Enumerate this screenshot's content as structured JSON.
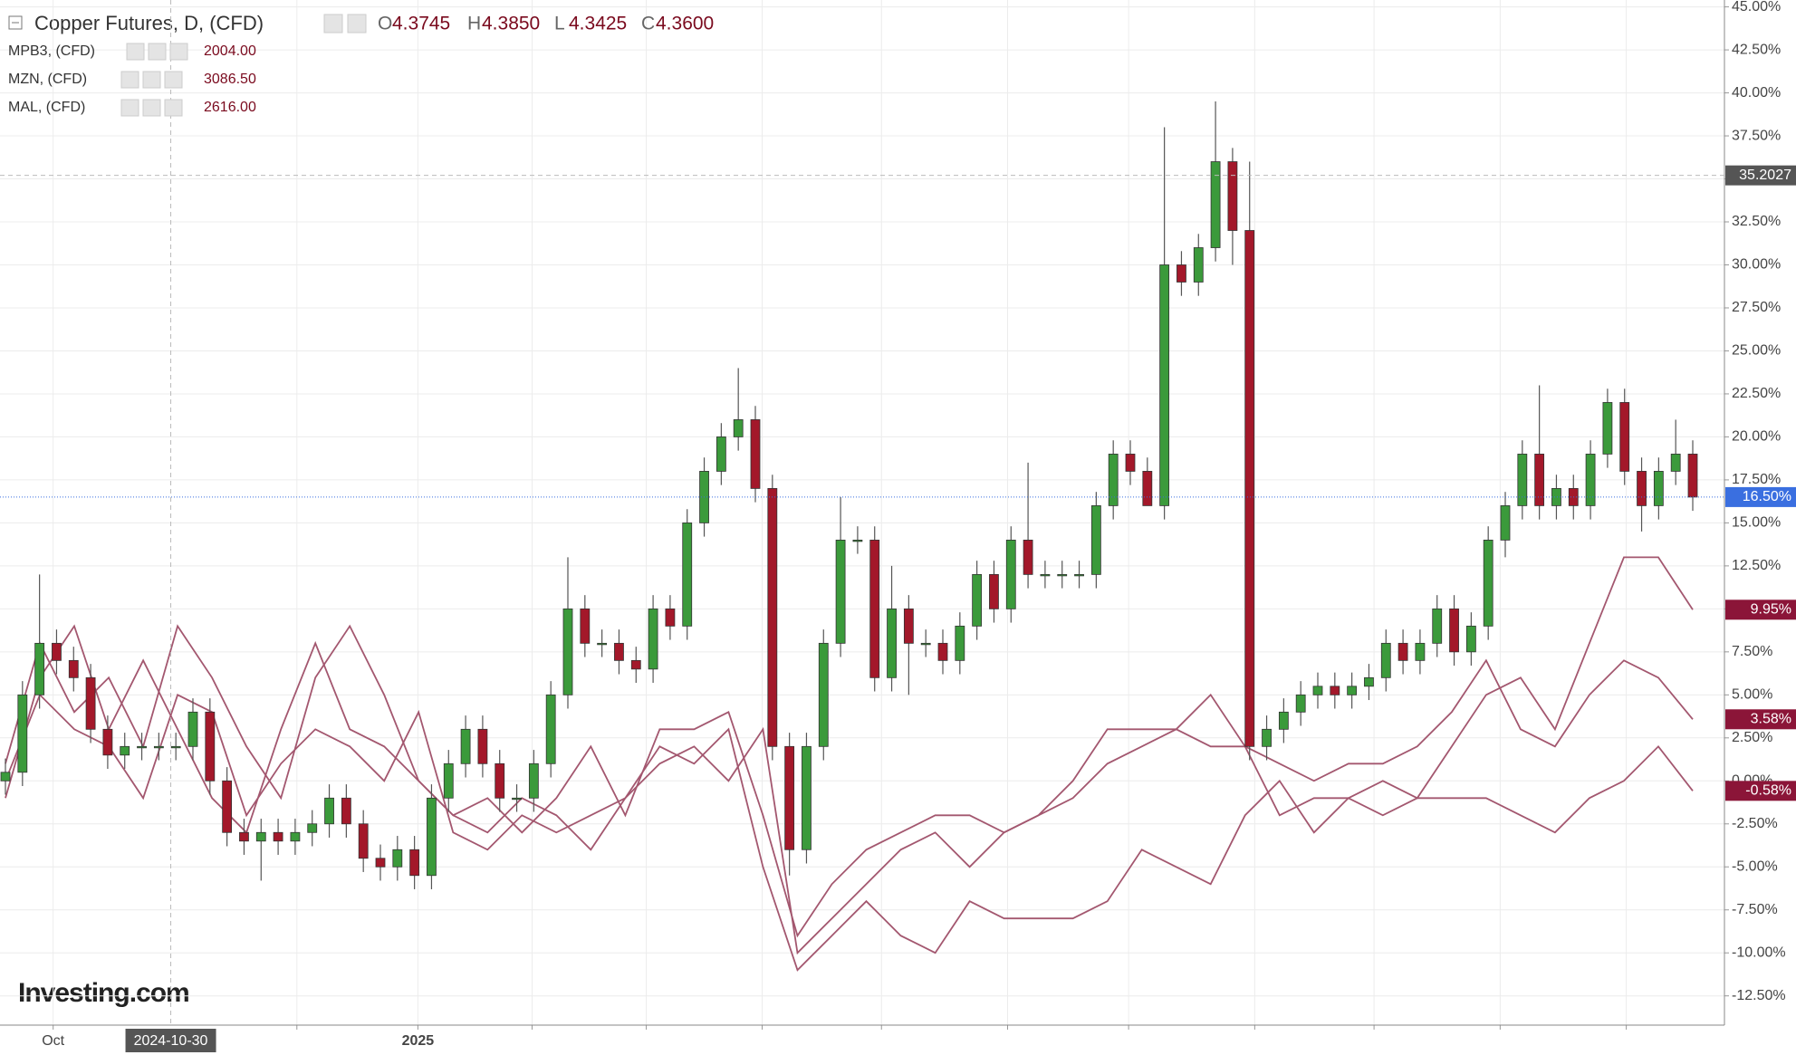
{
  "header": {
    "title": "Copper Futures, D, (CFD)",
    "ohlc": [
      {
        "key": "O",
        "value": "4.3745"
      },
      {
        "key": "H",
        "value": "4.3850"
      },
      {
        "key": "L",
        "value": "4.3425"
      },
      {
        "key": "C",
        "value": "4.3600"
      }
    ]
  },
  "logo": "Investing.com",
  "chart_data": {
    "type": "candlestick",
    "up_color": "#3b9a3b",
    "down_color": "#a3182a",
    "last_label": "16.50%",
    "last_label_color": "#3a6fe0",
    "candles": {
      "open": [
        0,
        0.5,
        5,
        8,
        7,
        6,
        3,
        1.5,
        2,
        2,
        2,
        2,
        4,
        0,
        -3,
        -3.5,
        -3,
        -3.5,
        -3,
        -2.5,
        -1,
        -2.5,
        -4.5,
        -5,
        -4,
        -5.5,
        -1,
        1,
        3,
        1,
        -1,
        -1,
        1,
        5,
        10,
        8,
        8,
        7,
        6.5,
        10,
        9,
        15,
        18,
        20,
        21,
        17,
        2,
        -4,
        2,
        8,
        14,
        14,
        6,
        10,
        8,
        8,
        7,
        9,
        12,
        10,
        14,
        12,
        12,
        12,
        12,
        16,
        19,
        18,
        16,
        30,
        29,
        31,
        36,
        32,
        2,
        3,
        4,
        5,
        5.5,
        5,
        5.5,
        6,
        8,
        7,
        8,
        10,
        7.5,
        9,
        14,
        16,
        19,
        16,
        17,
        16,
        19,
        22,
        18,
        16,
        18,
        19
      ],
      "high": [
        1.3,
        5.8,
        12,
        8.8,
        7.8,
        6.8,
        3.8,
        2.8,
        2.8,
        2.8,
        2.8,
        4.8,
        4.8,
        0.8,
        -2.2,
        -2.2,
        -2.2,
        -2.2,
        -1.7,
        -0.2,
        -0.2,
        -1.7,
        -3.7,
        -3.2,
        -3.2,
        -0.2,
        1.8,
        3.8,
        3.8,
        1.8,
        -0.2,
        1.8,
        5.8,
        13,
        10.8,
        8.8,
        8.8,
        7.8,
        10.8,
        10.8,
        15.8,
        18.8,
        20.8,
        24,
        21.8,
        17.8,
        2.8,
        2.8,
        8.8,
        16.5,
        14.8,
        14.8,
        12.5,
        10.8,
        8.8,
        8.8,
        9.8,
        12.8,
        12.8,
        14.8,
        18.5,
        12.8,
        12.8,
        12.8,
        16.8,
        19.8,
        19.8,
        18.8,
        38,
        30.8,
        31.8,
        39.5,
        36.8,
        36,
        3.8,
        4.8,
        5.8,
        6.3,
        6.3,
        6.3,
        6.8,
        8.8,
        8.8,
        8.8,
        10.8,
        10.8,
        9.8,
        14.8,
        16.8,
        19.8,
        23,
        17.8,
        17.8,
        19.8,
        22.8,
        22.8,
        18.8,
        18.8,
        21,
        19.8
      ],
      "low": [
        -0.8,
        -0.3,
        4.2,
        6.2,
        5.2,
        2.2,
        0.7,
        0.7,
        1.2,
        1.2,
        1.2,
        1.2,
        -0.8,
        -3.8,
        -4.3,
        -5.8,
        -4.3,
        -4.3,
        -3.8,
        -3.3,
        -3.3,
        -5.3,
        -5.8,
        -5.8,
        -6.3,
        -6.3,
        -1.8,
        0.2,
        0.2,
        -1.8,
        -1.8,
        -1.8,
        0.2,
        4.2,
        7.2,
        7.2,
        6.2,
        5.7,
        5.7,
        8.2,
        8.2,
        14.2,
        17.2,
        19.2,
        16.2,
        1.2,
        -5.5,
        -4.8,
        1.2,
        7.2,
        13.2,
        5.2,
        5.2,
        5,
        7.2,
        6.2,
        6.2,
        8.2,
        9.2,
        9.2,
        11.2,
        11.2,
        11.2,
        11.2,
        11.2,
        15.2,
        17.2,
        16.3,
        15.2,
        28.2,
        28.2,
        30.2,
        30,
        1.2,
        1.2,
        2.2,
        3.2,
        4.2,
        4.2,
        4.2,
        4.7,
        5.2,
        6.2,
        6.2,
        7.2,
        6.7,
        6.7,
        8.2,
        13,
        15.2,
        15.2,
        15.2,
        15.2,
        15.2,
        18.2,
        17.2,
        14.5,
        15.2,
        17.2,
        15.7
      ],
      "close": [
        0.5,
        5,
        8,
        7,
        6,
        3,
        1.5,
        2,
        2,
        2,
        2,
        4,
        0,
        -3,
        -3.5,
        -3,
        -3.5,
        -3,
        -2.5,
        -1,
        -2.5,
        -4.5,
        -5,
        -4,
        -5.5,
        -1,
        1,
        3,
        1,
        -1,
        -1,
        1,
        5,
        10,
        8,
        8,
        7,
        6.5,
        10,
        9,
        15,
        18,
        20,
        21,
        17,
        2,
        -4,
        2,
        8,
        14,
        14,
        6,
        10,
        8,
        8,
        7,
        9,
        12,
        10,
        14,
        12,
        12,
        12,
        12,
        16,
        19,
        18,
        16,
        30,
        29,
        31,
        36,
        32,
        2,
        3,
        4,
        5,
        5.5,
        5,
        5.5,
        6,
        8,
        7,
        8,
        10,
        7.5,
        9,
        14,
        16,
        19,
        16,
        17,
        16,
        19,
        22,
        18,
        16,
        18,
        19,
        16.5
      ]
    },
    "series": [
      {
        "name": "MPB3, (CFD)",
        "price": "2004.00",
        "color": "#a3576f",
        "label_color": "#8b1538",
        "last_label": "9.95%",
        "values": [
          -1,
          6,
          9,
          3,
          7,
          3,
          -1,
          -3,
          3,
          8,
          3,
          2,
          0,
          -2,
          -1,
          -3,
          -1,
          2,
          -2,
          3,
          3,
          4,
          -2,
          -9,
          -6,
          -4,
          -3,
          -2,
          -2,
          -3,
          -2,
          0,
          3,
          3,
          3,
          5,
          2,
          -2,
          -1,
          -1,
          0,
          -1,
          2,
          5,
          6,
          3,
          8,
          13,
          13,
          9.95
        ]
      },
      {
        "name": "MZN, (CFD)",
        "price": "3086.50",
        "color": "#a3576f",
        "label_color": "#8b1538",
        "last_label": "3.58%",
        "values": [
          1,
          8,
          4,
          6,
          2,
          9,
          6,
          2,
          -1,
          6,
          9,
          5,
          0,
          -2,
          -3,
          -1,
          -2,
          -4,
          -1,
          1,
          2,
          0,
          3,
          -10,
          -8,
          -6,
          -4,
          -3,
          -5,
          -3,
          -2,
          -1,
          1,
          2,
          3,
          2,
          2,
          1,
          0,
          1,
          1,
          2,
          4,
          7,
          3,
          2,
          5,
          7,
          6,
          3.58
        ]
      },
      {
        "name": "MAL, (CFD)",
        "price": "2616.00",
        "color": "#a3576f",
        "label_color": "#8b1538",
        "last_label": "-0.58%",
        "values": [
          0,
          5,
          3,
          2,
          -1,
          5,
          4,
          -2,
          1,
          3,
          2,
          0,
          4,
          -3,
          -4,
          -2,
          -3,
          -2,
          -1,
          2,
          1,
          3,
          -5,
          -11,
          -9,
          -7,
          -9,
          -10,
          -7,
          -8,
          -8,
          -8,
          -7,
          -4,
          -5,
          -6,
          -2,
          0,
          -3,
          -1,
          -2,
          -1,
          -1,
          -1,
          -2,
          -3,
          -1,
          0,
          2,
          -0.58
        ]
      }
    ],
    "ylim": [
      -14.2,
      45.4
    ],
    "yticks": [
      {
        "value": -12.5,
        "label": "-12.50%"
      },
      {
        "value": -10,
        "label": "-10.00%"
      },
      {
        "value": -7.5,
        "label": "-7.50%"
      },
      {
        "value": -5,
        "label": "-5.00%"
      },
      {
        "value": -2.5,
        "label": "-2.50%"
      },
      {
        "value": 0,
        "label": "0.00%"
      },
      {
        "value": 2.5,
        "label": "2.50%"
      },
      {
        "value": 5,
        "label": "5.00%"
      },
      {
        "value": 7.5,
        "label": "7.50%"
      },
      {
        "value": 10,
        "label": "10.00%"
      },
      {
        "value": 12.5,
        "label": "12.50%"
      },
      {
        "value": 15,
        "label": "15.00%"
      },
      {
        "value": 17.5,
        "label": "17.50%"
      },
      {
        "value": 20,
        "label": "20.00%"
      },
      {
        "value": 22.5,
        "label": "22.50%"
      },
      {
        "value": 25,
        "label": "25.00%"
      },
      {
        "value": 27.5,
        "label": "27.50%"
      },
      {
        "value": 30,
        "label": "30.00%"
      },
      {
        "value": 32.5,
        "label": "32.50%"
      },
      {
        "value": 35,
        "label": "35.00%"
      },
      {
        "value": 37.5,
        "label": "37.50%"
      },
      {
        "value": 40,
        "label": "40.00%"
      },
      {
        "value": 42.5,
        "label": "42.50%"
      },
      {
        "value": 45,
        "label": "45.00%"
      }
    ],
    "xticks": [
      {
        "value": 2.8,
        "label": "Oct"
      },
      17.1,
      {
        "value": 24.2,
        "label": "2025"
      },
      30.9,
      37.6,
      44.4,
      51.4,
      58.8,
      65.9,
      73.3,
      80.3,
      87.7,
      95.1
    ],
    "crosshair": {
      "x": 9.7,
      "x_label": "2024-10-30",
      "y": 35.2027
    },
    "grid": true
  }
}
